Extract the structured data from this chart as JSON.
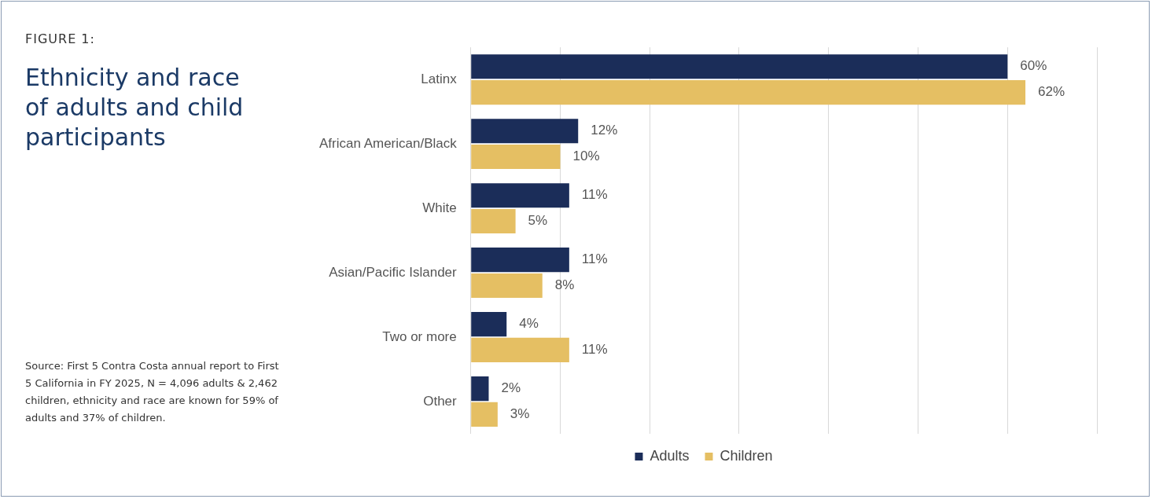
{
  "chart_data": {
    "type": "bar",
    "orientation": "horizontal",
    "subtitle": "FIGURE 1:",
    "title": "Ethnicity and race of adults and child participants",
    "categories": [
      "Latinx",
      "African American/Black",
      "White",
      "Asian/Pacific Islander",
      "Two or more",
      "Other"
    ],
    "series": [
      {
        "name": "Adults",
        "color": "#1b2d59",
        "values": [
          60,
          12,
          11,
          11,
          4,
          2
        ],
        "value_labels": [
          "60%",
          "12%",
          "11%",
          "11%",
          "4%",
          "2%"
        ]
      },
      {
        "name": "Children",
        "color": "#e5bf63",
        "values": [
          62,
          10,
          5,
          8,
          11,
          3
        ],
        "value_labels": [
          "62%",
          "10%",
          "5%",
          "8%",
          "11%",
          "3%"
        ]
      }
    ],
    "xlim": [
      0,
      70
    ],
    "xticks": [
      {
        "value": 0,
        "label": null
      },
      {
        "value": 10,
        "label": null
      },
      {
        "value": 20,
        "label": null
      },
      {
        "value": 30,
        "label": null
      },
      {
        "value": 40,
        "label": null
      },
      {
        "value": 50,
        "label": null
      },
      {
        "value": 60,
        "label": null
      },
      {
        "value": 70,
        "label": null
      }
    ],
    "grid": "x",
    "tick_labels": "y",
    "legend": "bottom",
    "annotations": [
      "Source: First 5 Contra Costa annual report to First 5 California in FY 2025, N = 4,096 adults & 2,462 children, ethnicity and race are known for 59% of adults and 37% of children."
    ]
  }
}
